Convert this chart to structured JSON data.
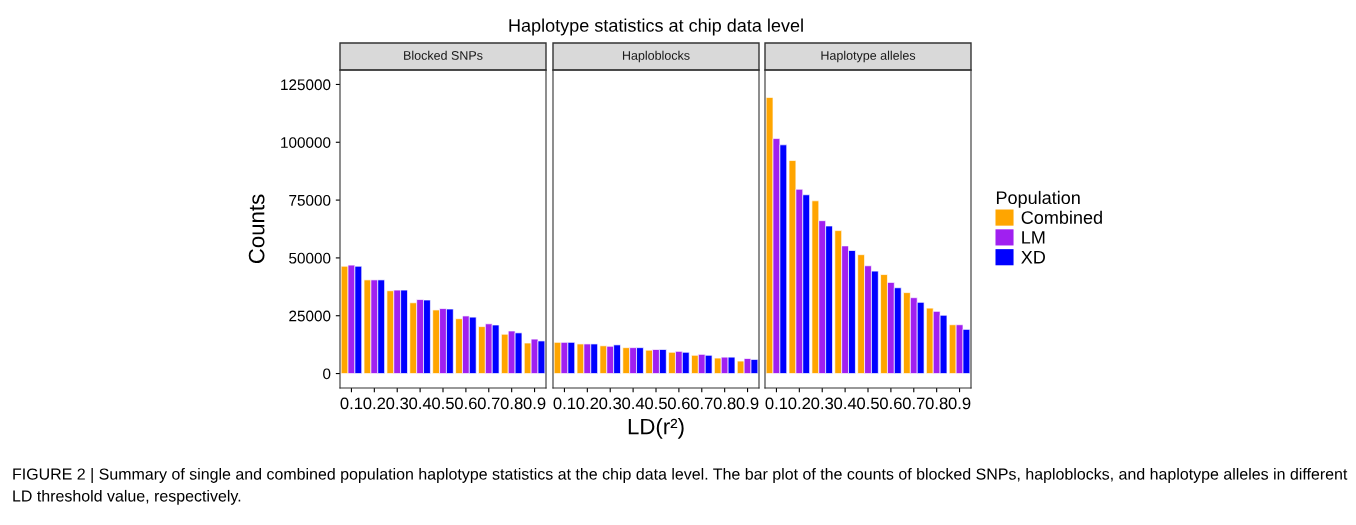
{
  "chart_data": [
    {
      "type": "bar",
      "subtitle": "Blocked SNPs",
      "ylabel": "Counts",
      "categories": [
        "0.1",
        "0.2",
        "0.3",
        "0.4",
        "0.5",
        "0.6",
        "0.7",
        "0.8",
        "0.9"
      ],
      "ylim": [
        -6250,
        131250
      ],
      "yticks": [
        0,
        25000,
        50000,
        75000,
        100000,
        125000
      ],
      "grid": false,
      "annotations": [
        "FIGURE 2 | Summary of single and combined population haplotype statistics at the chip data level. The bar plot of the counts of blocked SNPs, haploblocks, and haplotype alleles in different LD threshold value, respectively."
      ],
      "series": [
        {
          "color": "#ffa500",
          "values": [
            46400,
            40500,
            35800,
            30600,
            27500,
            23700,
            20300,
            17000,
            13200
          ]
        },
        {
          "color": "#a020f0",
          "values": [
            46900,
            40500,
            36100,
            32000,
            28100,
            24900,
            21500,
            18400,
            14900
          ]
        },
        {
          "color": "#0000ff",
          "values": [
            46400,
            40500,
            36100,
            31800,
            27900,
            24400,
            21000,
            17600,
            14100
          ]
        }
      ]
    },
    {
      "type": "bar",
      "title": "Haplotype statistics at chip data level",
      "subtitle": "Haploblocks",
      "xlabel": "LD(r²)",
      "categories": [
        "0.1",
        "0.2",
        "0.3",
        "0.4",
        "0.5",
        "0.6",
        "0.7",
        "0.8",
        "0.9"
      ],
      "ylim": [
        -6250,
        131250
      ],
      "yticks": [
        0,
        25000,
        50000,
        75000,
        100000,
        125000
      ],
      "tick_labels": "x",
      "grid": false,
      "series": [
        {
          "color": "#ffa500",
          "values": [
            13500,
            12800,
            12000,
            11200,
            10100,
            9200,
            7900,
            6700,
            5400
          ]
        },
        {
          "color": "#a020f0",
          "values": [
            13500,
            12800,
            11800,
            11200,
            10400,
            9600,
            8300,
            7100,
            6500
          ]
        },
        {
          "color": "#0000ff",
          "values": [
            13500,
            12800,
            12400,
            11200,
            10400,
            9200,
            7900,
            7100,
            6100
          ]
        }
      ]
    },
    {
      "type": "bar",
      "subtitle": "Haplotype alleles",
      "legend_title": "Population",
      "legend": "right",
      "categories": [
        "0.1",
        "0.2",
        "0.3",
        "0.4",
        "0.5",
        "0.6",
        "0.7",
        "0.8",
        "0.9"
      ],
      "ylim": [
        -6250,
        131250
      ],
      "yticks": [
        0,
        25000,
        50000,
        75000,
        100000,
        125000
      ],
      "tick_labels": "x",
      "grid": false,
      "series": [
        {
          "name": "Combined",
          "color": "#ffa500",
          "values": [
            119400,
            92100,
            74700,
            61800,
            51400,
            42800,
            35000,
            28300,
            21100
          ]
        },
        {
          "name": "LM",
          "color": "#a020f0",
          "values": [
            101600,
            79700,
            66100,
            55200,
            46600,
            39400,
            32800,
            26900,
            21100
          ]
        },
        {
          "name": "XD",
          "color": "#0000ff",
          "values": [
            98900,
            77300,
            63800,
            53200,
            44300,
            37100,
            30800,
            25200,
            19100
          ]
        }
      ]
    }
  ]
}
